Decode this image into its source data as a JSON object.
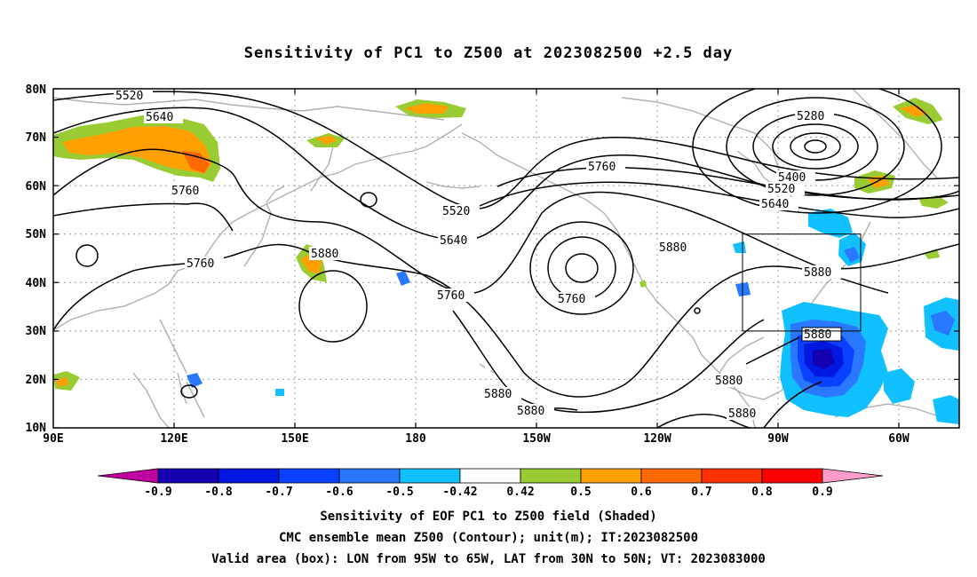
{
  "title": "Sensitivity of PC1 to Z500 at 2023082500 +2.5 day",
  "map": {
    "lat_labels": [
      "80N",
      "70N",
      "60N",
      "50N",
      "40N",
      "30N",
      "20N",
      "10N"
    ],
    "lon_labels": [
      "90E",
      "120E",
      "150E",
      "180",
      "150W",
      "120W",
      "90W",
      "60W"
    ],
    "contour_labels": [
      "5520",
      "5640",
      "5760",
      "5880",
      "5280",
      "5400",
      "5520",
      "5640",
      "5760",
      "5520",
      "5640",
      "5760",
      "5760",
      "5880",
      "5760",
      "5880",
      "5880",
      "5880",
      "5880",
      "5880"
    ],
    "valid_box": {
      "lon_from": "95W",
      "lon_to": "65W",
      "lat_from": "30N",
      "lat_to": "50N"
    }
  },
  "colorbar": {
    "labels": [
      "-0.9",
      "-0.8",
      "-0.7",
      "-0.6",
      "-0.5",
      "-0.42",
      "0.42",
      "0.5",
      "0.6",
      "0.7",
      "0.8",
      "0.9"
    ],
    "colors": [
      "#c000a0",
      "#1400b0",
      "#0018e0",
      "#0a40ff",
      "#2a78ff",
      "#10c0ff",
      "#ffffff",
      "#99cc33",
      "#ffa000",
      "#ff6a00",
      "#ff3000",
      "#ff0000",
      "#ff9ccc"
    ]
  },
  "captions": {
    "line1": "Sensitivity of EOF PC1 to Z500 field (Shaded)",
    "line2": "CMC ensemble mean Z500 (Contour); unit(m); IT:2023082500",
    "line3": "Valid area (box): LON from 95W to 65W, LAT from 30N to 50N; VT: 2023083000"
  }
}
